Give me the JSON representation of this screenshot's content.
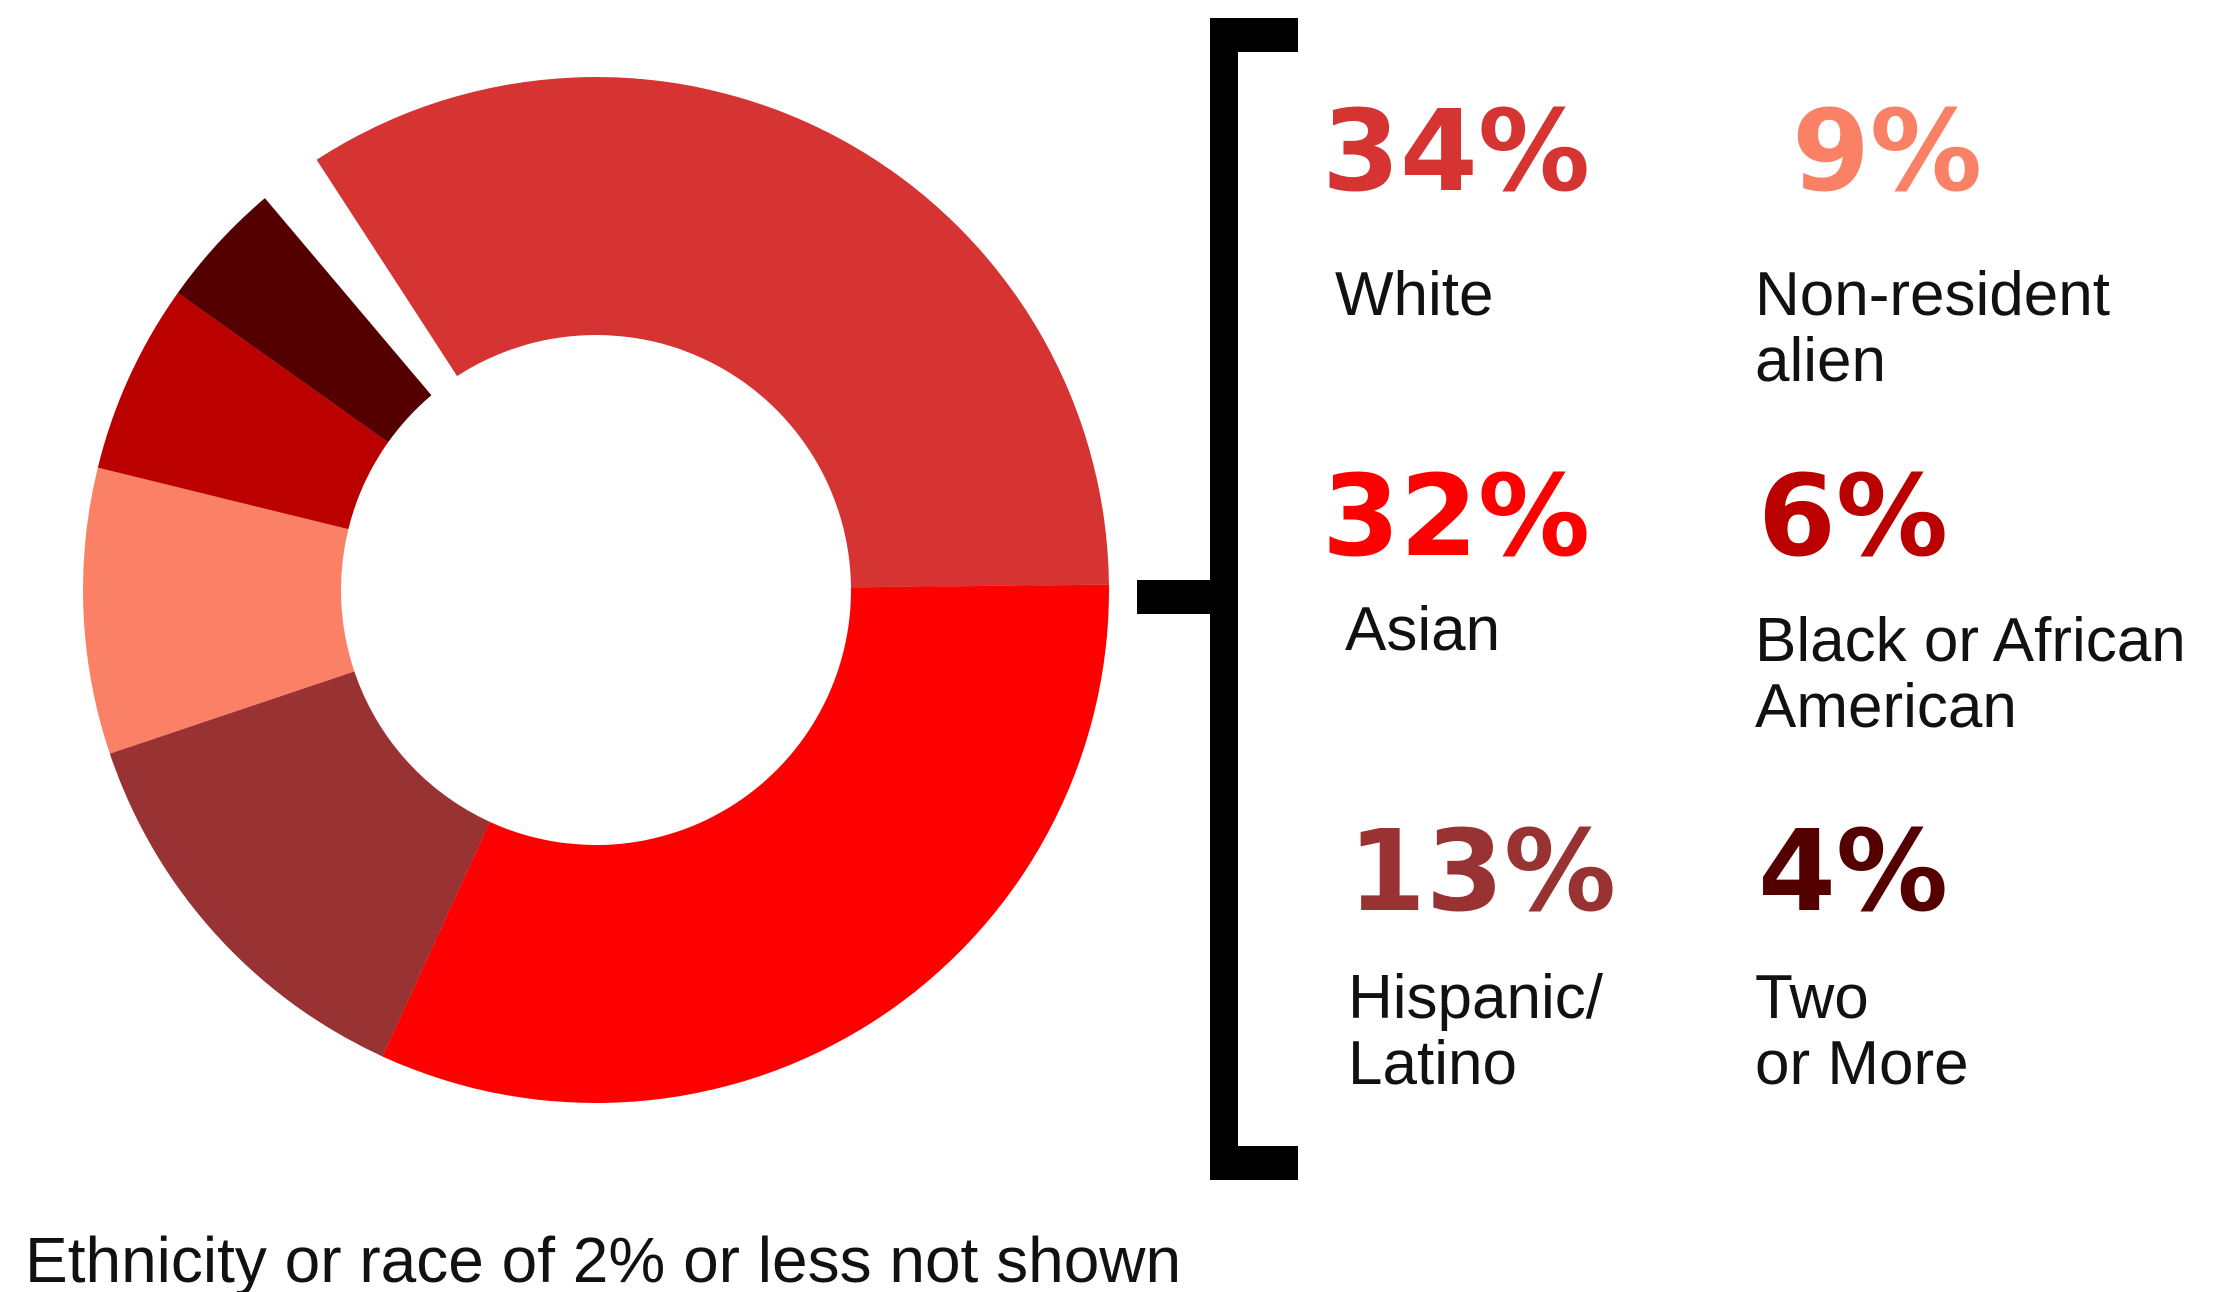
{
  "chart_data": {
    "type": "pie",
    "variant": "donut",
    "categories": [
      "White",
      "Asian",
      "Hispanic/ Latino",
      "Non-resident alien",
      "Black or African American",
      "Two or More"
    ],
    "values": [
      34,
      32,
      13,
      9,
      6,
      4
    ],
    "value_labels": [
      "34%",
      "32%",
      "13%",
      "9%",
      "6%",
      "4%"
    ],
    "legend_lines": [
      [
        "White"
      ],
      [
        "Asian"
      ],
      [
        "Hispanic/",
        "Latino"
      ],
      [
        "Non-resident",
        "alien"
      ],
      [
        "Black or African",
        "American"
      ],
      [
        "Two",
        "or More"
      ]
    ],
    "colors": [
      "#d63333",
      "#ff0000",
      "#993333",
      "#fa8066",
      "#bb0000",
      "#550000"
    ],
    "legend_placement": "right",
    "footnote": "Ethnicity or race of 2% or less not shown"
  }
}
